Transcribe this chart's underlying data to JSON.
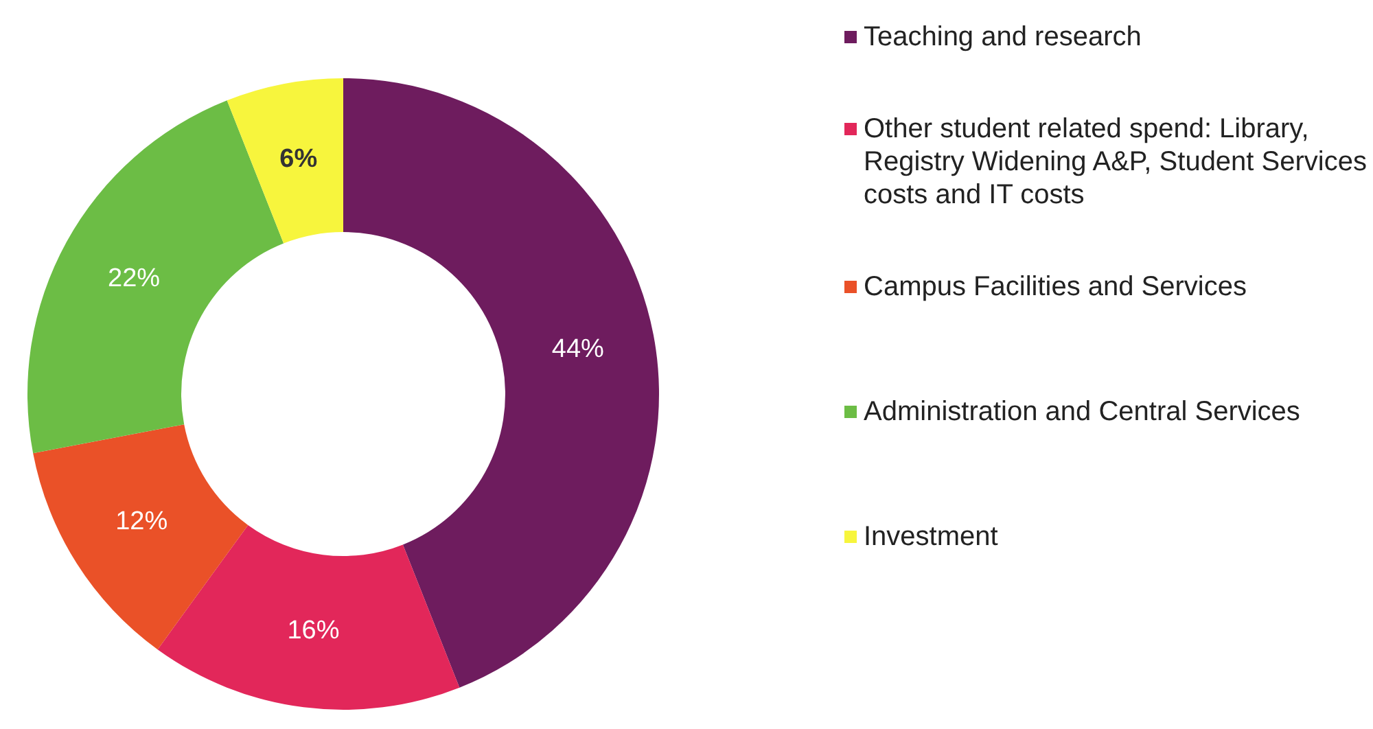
{
  "chart_data": {
    "type": "donut",
    "categories": [
      "Teaching and research",
      "Other student related spend: Library, Registry Widening A&P, Student Services costs and IT costs",
      "Campus Facilities and Services",
      "Administration and Central Services",
      "Investment"
    ],
    "values": [
      44,
      16,
      12,
      22,
      6
    ],
    "colors": [
      "#6e1c5e",
      "#e2275a",
      "#ea5128",
      "#6cbd45",
      "#f7f53d"
    ],
    "value_labels": [
      "44%",
      "16%",
      "12%",
      "22%",
      "6%"
    ],
    "legend": "right"
  }
}
